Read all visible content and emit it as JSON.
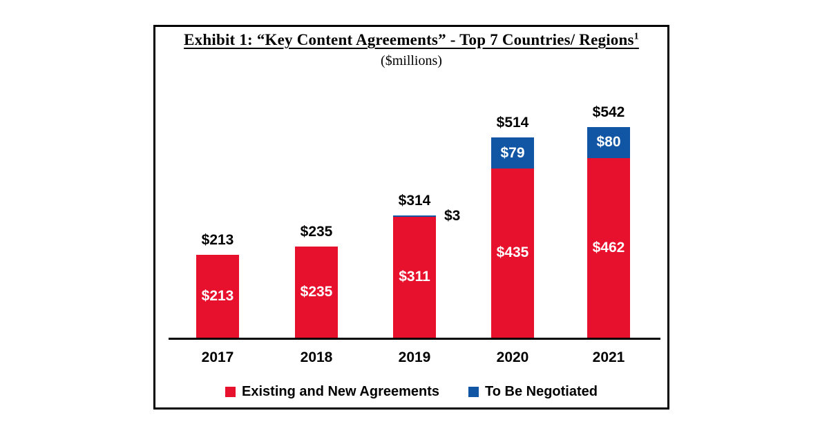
{
  "exhibit": {
    "title": "Exhibit 1: “Key Content Agreements” - Top 7 Countries/ Regions",
    "footnote_marker": "1",
    "subtitle": "($millions)"
  },
  "chart_data": {
    "type": "bar",
    "stacked": true,
    "orientation": "vertical",
    "categories": [
      "2017",
      "2018",
      "2019",
      "2020",
      "2021"
    ],
    "series": [
      {
        "name": "Existing and New Agreements",
        "color": "#E8112D",
        "values": [
          213,
          235,
          311,
          435,
          462
        ],
        "value_labels": [
          "$213",
          "$235",
          "$311",
          "$435",
          "$462"
        ]
      },
      {
        "name": "To Be Negotiated",
        "color": "#1056A5",
        "values": [
          0,
          0,
          3,
          79,
          80
        ],
        "value_labels": [
          "",
          "",
          "$3",
          "$79",
          "$80"
        ]
      }
    ],
    "totals": [
      213,
      235,
      314,
      514,
      542
    ],
    "total_labels": [
      "$213",
      "$235",
      "$314",
      "$514",
      "$542"
    ],
    "ylim": [
      0,
      580
    ],
    "y_axis_visible": false,
    "grid": false,
    "legend_position": "bottom"
  },
  "legend": {
    "items": [
      {
        "label": "Existing and New Agreements",
        "color": "#E8112D"
      },
      {
        "label": "To Be Negotiated",
        "color": "#1056A5"
      }
    ]
  }
}
